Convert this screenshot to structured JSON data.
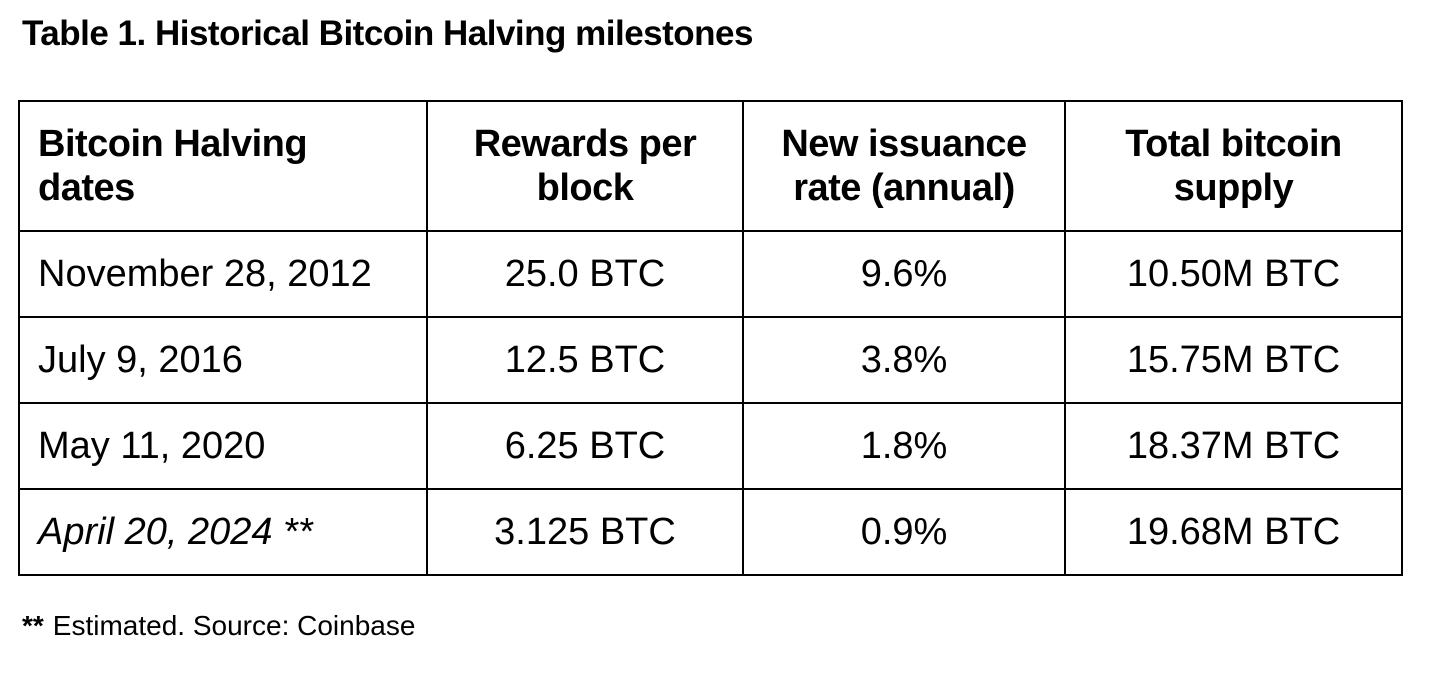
{
  "page": {
    "title": "Table 1. Historical Bitcoin Halving milestones"
  },
  "colors": {
    "background": "#ffffff",
    "text": "#000000",
    "border": "#000000"
  },
  "table": {
    "columns": [
      {
        "id": "dates",
        "label": "Bitcoin Halving dates",
        "lines": [
          "Bitcoin Halving",
          "dates"
        ],
        "align": "left"
      },
      {
        "id": "reward",
        "label": "Rewards per block",
        "lines": [
          "Rewards per",
          "block"
        ],
        "align": "center"
      },
      {
        "id": "issuance",
        "label": "New issuance rate (annual)",
        "lines": [
          "New issuance",
          "rate (annual)"
        ],
        "align": "center"
      },
      {
        "id": "supply",
        "label": "Total bitcoin supply",
        "lines": [
          "Total bitcoin",
          "supply"
        ],
        "align": "center"
      }
    ],
    "rows": [
      {
        "date": "November 28, 2012",
        "reward": "25.0 BTC",
        "issuance": "9.6%",
        "supply": "10.50M BTC",
        "estimated": false
      },
      {
        "date": "July 9, 2016",
        "reward": "12.5 BTC",
        "issuance": "3.8%",
        "supply": "15.75M BTC",
        "estimated": false
      },
      {
        "date": "May 11, 2020",
        "reward": "6.25 BTC",
        "issuance": "1.8%",
        "supply": "18.37M BTC",
        "estimated": false
      },
      {
        "date": "April 20, 2024 **",
        "reward": "3.125 BTC",
        "issuance": "0.9%",
        "supply": "19.68M BTC",
        "estimated": true
      }
    ]
  },
  "footnote": {
    "marker": "**",
    "text": "Estimated. Source: Coinbase"
  },
  "chart_data": {
    "type": "table",
    "title": "Table 1. Historical Bitcoin Halving milestones",
    "columns": [
      "Bitcoin Halving dates",
      "Rewards per block",
      "New issuance rate (annual)",
      "Total bitcoin supply"
    ],
    "rows": [
      [
        "November 28, 2012",
        "25.0 BTC",
        "9.6%",
        "10.50M BTC"
      ],
      [
        "July 9, 2016",
        "12.5 BTC",
        "3.8%",
        "15.75M BTC"
      ],
      [
        "May 11, 2020",
        "6.25 BTC",
        "1.8%",
        "18.37M BTC"
      ],
      [
        "April 20, 2024 **",
        "3.125 BTC",
        "0.9%",
        "19.68M BTC"
      ]
    ],
    "reward_btc": [
      25.0,
      12.5,
      6.25,
      3.125
    ],
    "new_issuance_rate_pct": [
      9.6,
      3.8,
      1.8,
      0.9
    ],
    "total_supply_millions_btc": [
      10.5,
      15.75,
      18.37,
      19.68
    ],
    "note": "** Estimated. Source: Coinbase"
  }
}
